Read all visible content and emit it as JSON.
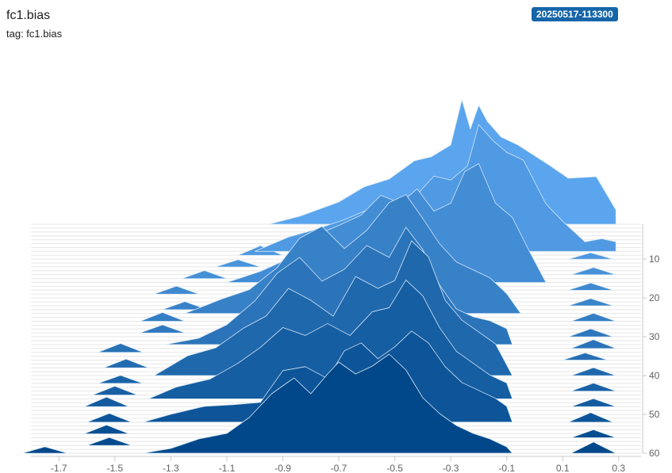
{
  "header": {
    "title": "fc1.bias",
    "tag_line": "tag: fc1.bias",
    "run_badge": "20250517-113300"
  },
  "colors": {
    "front": "#01488a",
    "back": "#5aa5ee",
    "stroke": "#d6e6f5",
    "badge": "#1565a8"
  },
  "chart_data": {
    "type": "area",
    "subtype": "histogram-offset",
    "title": "fc1.bias",
    "xlim": [
      -1.8,
      0.38
    ],
    "x_ticks": [
      -1.7,
      -1.5,
      -1.3,
      -1.1,
      -0.9,
      -0.7,
      -0.5,
      -0.3,
      -0.1,
      0.1,
      0.3
    ],
    "x_tick_labels": [
      "-1.7",
      "-1.5",
      "-1.3",
      "-1.1",
      "-0.9",
      "-0.7",
      "-0.5",
      "-0.3",
      "-0.1",
      "0.1",
      "0.3"
    ],
    "step_range": [
      1,
      60
    ],
    "step_ticks": [
      10,
      20,
      30,
      40,
      50,
      60
    ],
    "step_tick_labels": [
      "10",
      "20",
      "30",
      "40",
      "50",
      "60"
    ],
    "frames": [
      {
        "step": 1,
        "x": [
          -0.95,
          -0.84,
          -0.7,
          -0.61,
          -0.52,
          -0.43,
          -0.37,
          -0.3,
          -0.26,
          -0.23,
          -0.2,
          -0.17,
          -0.12,
          -0.06,
          0.05,
          0.12,
          0.22,
          0.29
        ],
        "y": [
          0,
          10,
          28,
          47,
          57,
          80,
          85,
          100,
          157,
          120,
          150,
          130,
          110,
          100,
          75,
          58,
          60,
          18
        ]
      },
      {
        "step": 8,
        "x": [
          -1.0,
          -0.88,
          -0.78,
          -0.68,
          -0.58,
          -0.48,
          -0.42,
          -0.36,
          -0.3,
          -0.24,
          -0.2,
          -0.15,
          -0.1,
          -0.04,
          0.04,
          0.1,
          0.18,
          0.24,
          0.29
        ],
        "y": [
          0,
          18,
          28,
          40,
          55,
          60,
          72,
          95,
          90,
          108,
          160,
          140,
          125,
          115,
          60,
          38,
          12,
          16,
          12
        ]
      },
      {
        "step": 16,
        "x": [
          -1.1,
          -0.98,
          -0.88,
          -0.78,
          -0.7,
          -0.62,
          -0.55,
          -0.48,
          -0.42,
          -0.36,
          -0.3,
          -0.25,
          -0.2,
          -0.14,
          -0.08,
          -0.02,
          0.04
        ],
        "y": [
          0,
          14,
          30,
          60,
          72,
          85,
          110,
          100,
          118,
          90,
          100,
          140,
          150,
          100,
          82,
          40,
          0
        ]
      },
      {
        "step": 24,
        "x": [
          -1.25,
          -1.12,
          -1.02,
          -0.92,
          -0.84,
          -0.76,
          -0.68,
          -0.6,
          -0.52,
          -0.46,
          -0.4,
          -0.34,
          -0.28,
          -0.22,
          -0.16,
          -0.1,
          -0.05
        ],
        "y": [
          0,
          18,
          30,
          58,
          95,
          110,
          82,
          105,
          140,
          150,
          120,
          88,
          65,
          55,
          45,
          25,
          0
        ]
      },
      {
        "step": 32,
        "x": [
          -1.32,
          -1.2,
          -1.1,
          -1.0,
          -0.92,
          -0.84,
          -0.76,
          -0.68,
          -0.6,
          -0.52,
          -0.46,
          -0.4,
          -0.34,
          -0.28,
          -0.22,
          -0.16,
          -0.1,
          -0.08
        ],
        "y": [
          0,
          8,
          25,
          55,
          90,
          110,
          80,
          95,
          125,
          110,
          148,
          120,
          75,
          45,
          35,
          30,
          20,
          0
        ]
      },
      {
        "step": 40,
        "x": [
          -1.36,
          -1.24,
          -1.14,
          -1.04,
          -0.96,
          -0.88,
          -0.8,
          -0.72,
          -0.64,
          -0.56,
          -0.5,
          -0.44,
          -0.38,
          -0.32,
          -0.26,
          -0.2,
          -0.14,
          -0.08
        ],
        "y": [
          0,
          25,
          35,
          60,
          75,
          110,
          95,
          75,
          125,
          110,
          120,
          170,
          150,
          95,
          70,
          55,
          40,
          0
        ]
      },
      {
        "step": 46,
        "x": [
          -1.38,
          -1.28,
          -1.16,
          -1.06,
          -0.98,
          -0.9,
          -0.82,
          -0.74,
          -0.66,
          -0.58,
          -0.52,
          -0.46,
          -0.4,
          -0.34,
          -0.28,
          -0.22,
          -0.16,
          -0.1,
          -0.08
        ],
        "y": [
          0,
          15,
          25,
          45,
          65,
          90,
          80,
          95,
          80,
          110,
          115,
          150,
          130,
          90,
          60,
          45,
          30,
          20,
          0
        ]
      },
      {
        "step": 52,
        "x": [
          -1.4,
          -1.3,
          -1.18,
          -1.08,
          -0.98,
          -0.9,
          -0.82,
          -0.74,
          -0.68,
          -0.62,
          -0.56,
          -0.5,
          -0.44,
          -0.38,
          -0.32,
          -0.26,
          -0.2,
          -0.14,
          -0.1,
          -0.08
        ],
        "y": [
          0,
          10,
          20,
          22,
          25,
          65,
          70,
          55,
          90,
          100,
          80,
          95,
          115,
          100,
          70,
          50,
          40,
          30,
          20,
          0
        ]
      },
      {
        "step": 60,
        "x": [
          -1.4,
          -1.3,
          -1.2,
          -1.1,
          -1.02,
          -0.94,
          -0.86,
          -0.8,
          -0.74,
          -0.7,
          -0.64,
          -0.58,
          -0.52,
          -0.46,
          -0.4,
          -0.34,
          -0.28,
          -0.22,
          -0.16,
          -0.1,
          -0.08
        ],
        "y": [
          0,
          6,
          18,
          25,
          45,
          75,
          95,
          75,
          100,
          115,
          100,
          110,
          125,
          105,
          70,
          50,
          35,
          25,
          18,
          8,
          0
        ]
      }
    ],
    "outliers": [
      {
        "step": 9,
        "x": -0.98,
        "y": 12
      },
      {
        "step": 12,
        "x": -1.06,
        "y": 9
      },
      {
        "step": 15,
        "x": -1.18,
        "y": 10
      },
      {
        "step": 19,
        "x": -1.28,
        "y": 10
      },
      {
        "step": 23,
        "x": -1.25,
        "y": 10
      },
      {
        "step": 26,
        "x": -1.33,
        "y": 11
      },
      {
        "step": 29,
        "x": -1.33,
        "y": 10
      },
      {
        "step": 34,
        "x": -1.48,
        "y": 11
      },
      {
        "step": 38,
        "x": -1.46,
        "y": 11
      },
      {
        "step": 42,
        "x": -1.48,
        "y": 10
      },
      {
        "step": 45,
        "x": -1.5,
        "y": 11
      },
      {
        "step": 48,
        "x": -1.53,
        "y": 12
      },
      {
        "step": 52,
        "x": -1.52,
        "y": 11
      },
      {
        "step": 55,
        "x": -1.53,
        "y": 11
      },
      {
        "step": 58,
        "x": -1.52,
        "y": 10
      },
      {
        "step": 60,
        "x": -1.75,
        "y": 8
      },
      {
        "step": 10,
        "x": 0.2,
        "y": 8
      },
      {
        "step": 14,
        "x": 0.21,
        "y": 9
      },
      {
        "step": 18,
        "x": 0.2,
        "y": 9
      },
      {
        "step": 22,
        "x": 0.2,
        "y": 9
      },
      {
        "step": 26,
        "x": 0.21,
        "y": 10
      },
      {
        "step": 30,
        "x": 0.2,
        "y": 10
      },
      {
        "step": 33,
        "x": 0.21,
        "y": 11
      },
      {
        "step": 36,
        "x": 0.18,
        "y": 9
      },
      {
        "step": 40,
        "x": 0.21,
        "y": 10
      },
      {
        "step": 44,
        "x": 0.21,
        "y": 10
      },
      {
        "step": 48,
        "x": 0.21,
        "y": 10
      },
      {
        "step": 52,
        "x": 0.2,
        "y": 12
      },
      {
        "step": 56,
        "x": 0.21,
        "y": 10
      },
      {
        "step": 60,
        "x": 0.21,
        "y": 14
      }
    ]
  }
}
